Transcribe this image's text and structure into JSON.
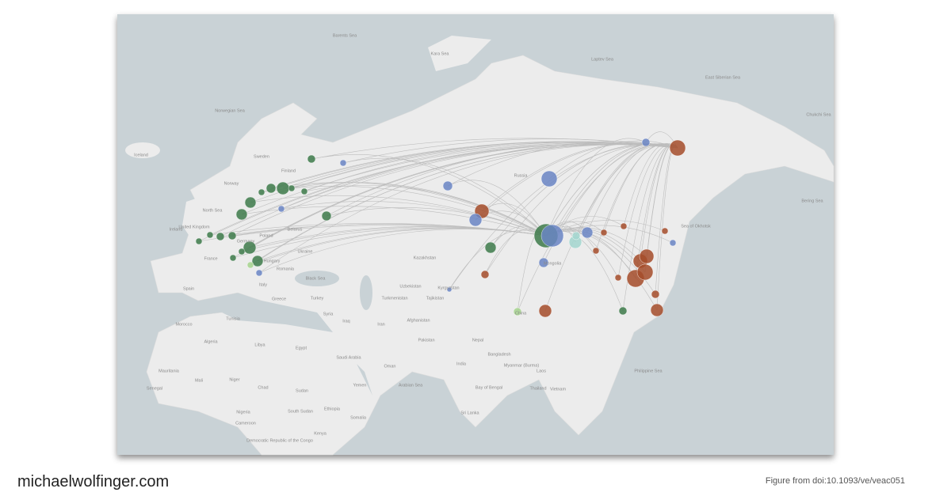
{
  "map": {
    "labels": [
      "Barents Sea",
      "Kara Sea",
      "Laptev Sea",
      "East Siberian Sea",
      "Chukchi Sea",
      "Norwegian Sea",
      "Iceland",
      "Sweden",
      "Finland",
      "Norway",
      "North Sea",
      "Ireland",
      "United Kingdom",
      "France",
      "Germany",
      "Poland",
      "Belarus",
      "Ukraine",
      "Hungary",
      "Romania",
      "Spain",
      "Italy",
      "Greece",
      "Turkey",
      "Black Sea",
      "Russia",
      "Kazakhstan",
      "Uzbekistan",
      "Turkmenistan",
      "Kyrgyzstan",
      "Tajikistan",
      "Afghanistan",
      "Iran",
      "Iraq",
      "Syria",
      "Tunisia",
      "Morocco",
      "Algeria",
      "Libya",
      "Egypt",
      "Saudi Arabia",
      "Oman",
      "Yemen",
      "Pakistan",
      "Nepal",
      "India",
      "Bangladesh",
      "Myanmar (Burma)",
      "Laos",
      "Thailand",
      "Vietnam",
      "Arabian Sea",
      "Bay of Bengal",
      "Sri Lanka",
      "China",
      "Mongolia",
      "Sea of Okhotsk",
      "Bering Sea",
      "Philippine Sea",
      "Mauritania",
      "Mali",
      "Niger",
      "Chad",
      "Sudan",
      "Senegal",
      "Nigeria",
      "Ethiopia",
      "Somalia",
      "South Sudan",
      "Cameroon",
      "Kenya",
      "Democratic Republic of the Congo"
    ]
  },
  "footer": {
    "site": "michaelwolfinger.com",
    "credit": "Figure from doi:10.1093/ve/veac051"
  }
}
